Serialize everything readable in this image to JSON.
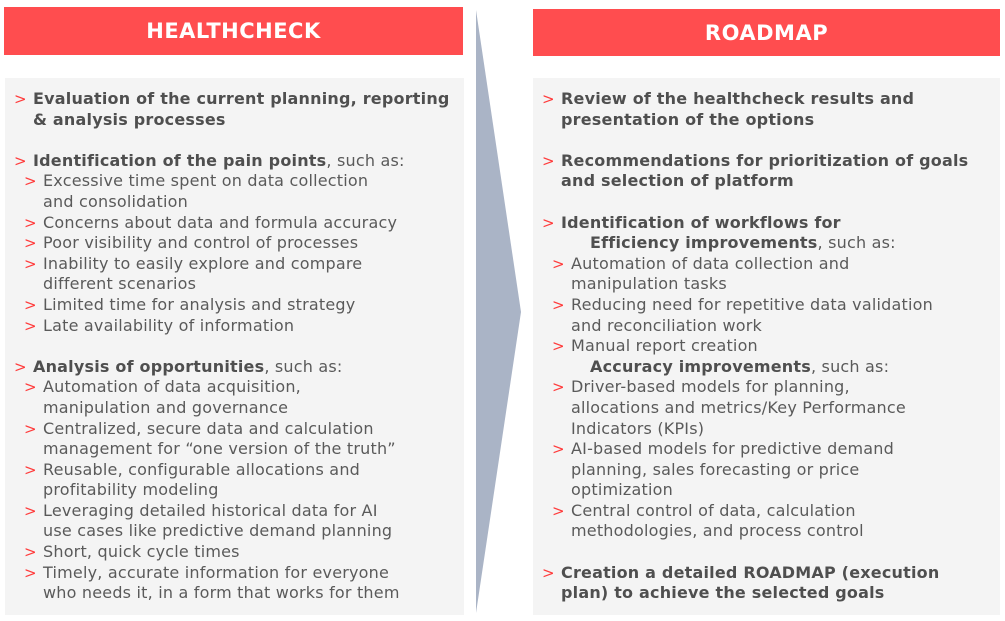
{
  "colors": {
    "header": "#ff4d4f",
    "bullet": "#ff3b3b",
    "panel": "#f4f4f4",
    "arrow": "#aab4c6"
  },
  "bullet_icon": "chevron-right-icon",
  "healthcheck": {
    "title": "HEALTHCHECK",
    "items": [
      {
        "bold": "Evaluation of the current planning, reporting\n& analysis processes",
        "suffix": "",
        "subs": []
      },
      {
        "bold": "Identification of the pain points",
        "suffix": ", such as:",
        "subs": [
          "Excessive time spent on data collection\nand consolidation",
          "Concerns about data and formula accuracy",
          "Poor visibility and control of processes",
          "Inability to easily explore and compare\ndifferent scenarios",
          "Limited time for analysis and strategy",
          "Late availability of information"
        ]
      },
      {
        "bold": "Analysis of opportunities",
        "suffix": ", such as:",
        "subs": [
          "Automation of data acquisition,\nmanipulation and governance",
          "Centralized, secure data and calculation\nmanagement for “one version of the truth”",
          "Reusable, configurable allocations and\nprofitability modeling",
          "Leveraging detailed historical data for AI\nuse cases like predictive demand planning",
          "Short, quick cycle times",
          "Timely, accurate information for everyone\nwho needs it, in a form that works for them"
        ]
      }
    ]
  },
  "roadmap": {
    "title": "ROADMAP",
    "items": [
      {
        "bold": "Review of the healthcheck results and\npresentation of the options",
        "suffix": "",
        "subs": []
      },
      {
        "bold": "Recommendations for prioritization of goals\nand selection of platform",
        "suffix": "",
        "subs": []
      },
      {
        "bold": "Identification of workflows for",
        "suffix": "",
        "groups": [
          {
            "bold": "Efficiency improvements",
            "suffix": ", such as:",
            "subs": [
              "Automation of data collection and\nmanipulation tasks",
              "Reducing need for repetitive data validation\nand reconciliation work",
              "Manual report creation"
            ]
          },
          {
            "bold": "Accuracy improvements",
            "suffix": ", such as:",
            "subs": [
              "Driver-based models for planning,\nallocations and metrics/Key Performance\nIndicators (KPIs)",
              "AI-based models for predictive demand\nplanning, sales forecasting or price\noptimization",
              "Central control of data, calculation\nmethodologies, and process control"
            ]
          }
        ]
      },
      {
        "bold": "Creation a detailed ROADMAP (execution\nplan) to achieve the selected goals",
        "suffix": "",
        "subs": []
      }
    ]
  }
}
